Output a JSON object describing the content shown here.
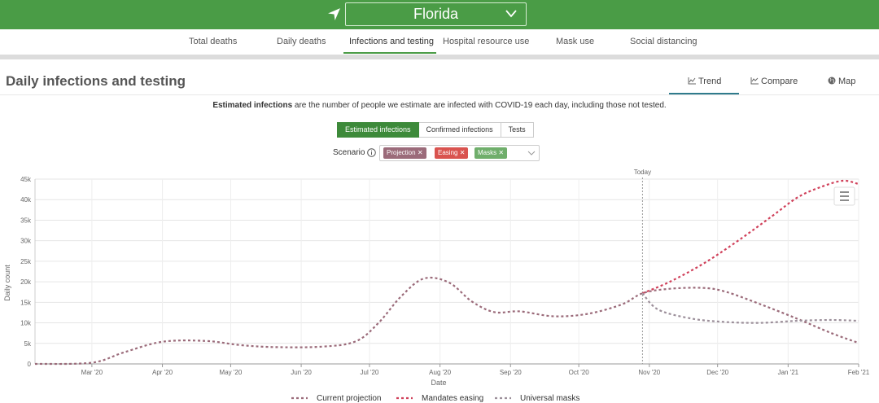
{
  "header": {
    "state": "Florida",
    "location_icon": "navigation-arrow-icon",
    "dropdown_icon": "chevron-down-icon"
  },
  "nav": {
    "items": [
      {
        "label": "Total deaths"
      },
      {
        "label": "Daily deaths"
      },
      {
        "label": "Infections and testing",
        "active": true
      },
      {
        "label": "Hospital resource use"
      },
      {
        "label": "Mask use"
      },
      {
        "label": "Social distancing"
      }
    ]
  },
  "page": {
    "title": "Daily infections and testing",
    "view_tabs": [
      {
        "label": "Trend",
        "icon": "line-chart-icon",
        "active": true
      },
      {
        "label": "Compare",
        "icon": "compare-chart-icon"
      },
      {
        "label": "Map",
        "icon": "globe-icon"
      }
    ]
  },
  "description": {
    "bold": "Estimated infections",
    "rest": " are the number of people we estimate are infected with COVID-19 each day, including those not tested."
  },
  "metric_tabs": [
    {
      "label": "Estimated infections",
      "active": true
    },
    {
      "label": "Confirmed infections"
    },
    {
      "label": "Tests"
    }
  ],
  "scenario": {
    "label": "Scenario",
    "info_icon": "info-circle-icon",
    "chips": [
      {
        "label": "Projection",
        "color": "#9b6b7a"
      },
      {
        "label": "Easing",
        "color": "#d9534f"
      },
      {
        "label": "Masks",
        "color": "#6fae6b"
      }
    ]
  },
  "chart_menu_icon": "hamburger-menu-icon",
  "chart_data": {
    "type": "line",
    "xlabel": "Date",
    "ylabel": "Daily count",
    "x_ticks": [
      "Mar '20",
      "Apr '20",
      "May '20",
      "Jun '20",
      "Jul '20",
      "Aug '20",
      "Sep '20",
      "Oct '20",
      "Nov '20",
      "Dec '20",
      "Jan '21",
      "Feb '21"
    ],
    "y_ticks": [
      "0",
      "5k",
      "10k",
      "15k",
      "20k",
      "25k",
      "30k",
      "35k",
      "40k",
      "45k"
    ],
    "ylim": [
      0,
      45000
    ],
    "xlim": [
      "2020-02-05",
      "2021-02-01"
    ],
    "today": {
      "label": "Today",
      "date": "2020-10-29"
    },
    "grid": true,
    "legend_position": "bottom",
    "series": [
      {
        "name": "Current projection",
        "color": "#9b6b7a",
        "points": [
          [
            "2020-02-05",
            0
          ],
          [
            "2020-03-01",
            300
          ],
          [
            "2020-03-15",
            2800
          ],
          [
            "2020-04-01",
            5400
          ],
          [
            "2020-04-20",
            5600
          ],
          [
            "2020-05-05",
            4600
          ],
          [
            "2020-05-20",
            4100
          ],
          [
            "2020-06-10",
            4200
          ],
          [
            "2020-06-25",
            5500
          ],
          [
            "2020-07-05",
            10000
          ],
          [
            "2020-07-15",
            16500
          ],
          [
            "2020-07-25",
            20800
          ],
          [
            "2020-08-05",
            19800
          ],
          [
            "2020-08-15",
            15200
          ],
          [
            "2020-08-25",
            12600
          ],
          [
            "2020-09-05",
            12800
          ],
          [
            "2020-09-20",
            11600
          ],
          [
            "2020-10-05",
            12200
          ],
          [
            "2020-10-20",
            14500
          ],
          [
            "2020-10-29",
            17200
          ],
          [
            "2020-11-10",
            18300
          ],
          [
            "2020-11-25",
            18500
          ],
          [
            "2020-12-05",
            17500
          ],
          [
            "2020-12-20",
            14500
          ],
          [
            "2021-01-05",
            11000
          ],
          [
            "2021-01-20",
            7500
          ],
          [
            "2021-02-01",
            5100
          ]
        ]
      },
      {
        "name": "Mandates easing",
        "color": "#d0405a",
        "points": [
          [
            "2020-10-29",
            17200
          ],
          [
            "2020-11-10",
            20000
          ],
          [
            "2020-11-25",
            24500
          ],
          [
            "2020-12-10",
            30000
          ],
          [
            "2020-12-25",
            36000
          ],
          [
            "2021-01-05",
            40500
          ],
          [
            "2021-01-15",
            43000
          ],
          [
            "2021-01-25",
            44600
          ],
          [
            "2021-02-01",
            43800
          ]
        ]
      },
      {
        "name": "Universal masks",
        "color": "#9c8f9a",
        "points": [
          [
            "2020-10-29",
            17200
          ],
          [
            "2020-11-05",
            13200
          ],
          [
            "2020-11-20",
            11000
          ],
          [
            "2020-12-05",
            10200
          ],
          [
            "2020-12-20",
            10000
          ],
          [
            "2021-01-05",
            10500
          ],
          [
            "2021-01-20",
            10700
          ],
          [
            "2021-02-01",
            10500
          ]
        ]
      }
    ]
  }
}
